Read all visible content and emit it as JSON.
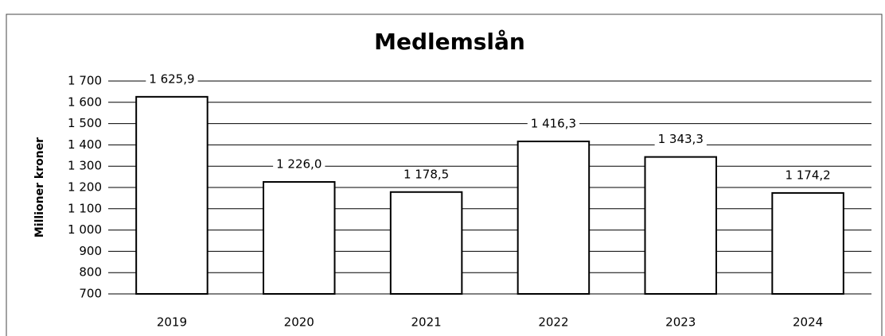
{
  "chart_data": {
    "type": "bar",
    "title": "Medlemslån",
    "y_label": "Millioner kroner",
    "categories": [
      "2019",
      "2020",
      "2021",
      "2022",
      "2023",
      "2024"
    ],
    "values": [
      1625.9,
      1226.0,
      1178.5,
      1416.3,
      1343.3,
      1174.2
    ],
    "value_labels": [
      "1 625,9",
      "1 226,0",
      "1 178,5",
      "1 416,3",
      "1 343,3",
      "1 174,2"
    ],
    "color": "#ffffff",
    "edge_color": "#000000",
    "ylim": [
      700,
      1700
    ],
    "yticks": [
      700,
      800,
      900,
      {
        "value": 1000,
        "label": "1 000"
      },
      {
        "value": 1100,
        "label": "1 100"
      },
      {
        "value": 1200,
        "label": "1 200"
      },
      {
        "value": 1300,
        "label": "1 300"
      },
      {
        "value": 1400,
        "label": "1 400"
      },
      {
        "value": 1500,
        "label": "1 500"
      },
      {
        "value": 1600,
        "label": "1 600"
      },
      {
        "value": 1700,
        "label": "1 700"
      }
    ],
    "grid": true
  }
}
